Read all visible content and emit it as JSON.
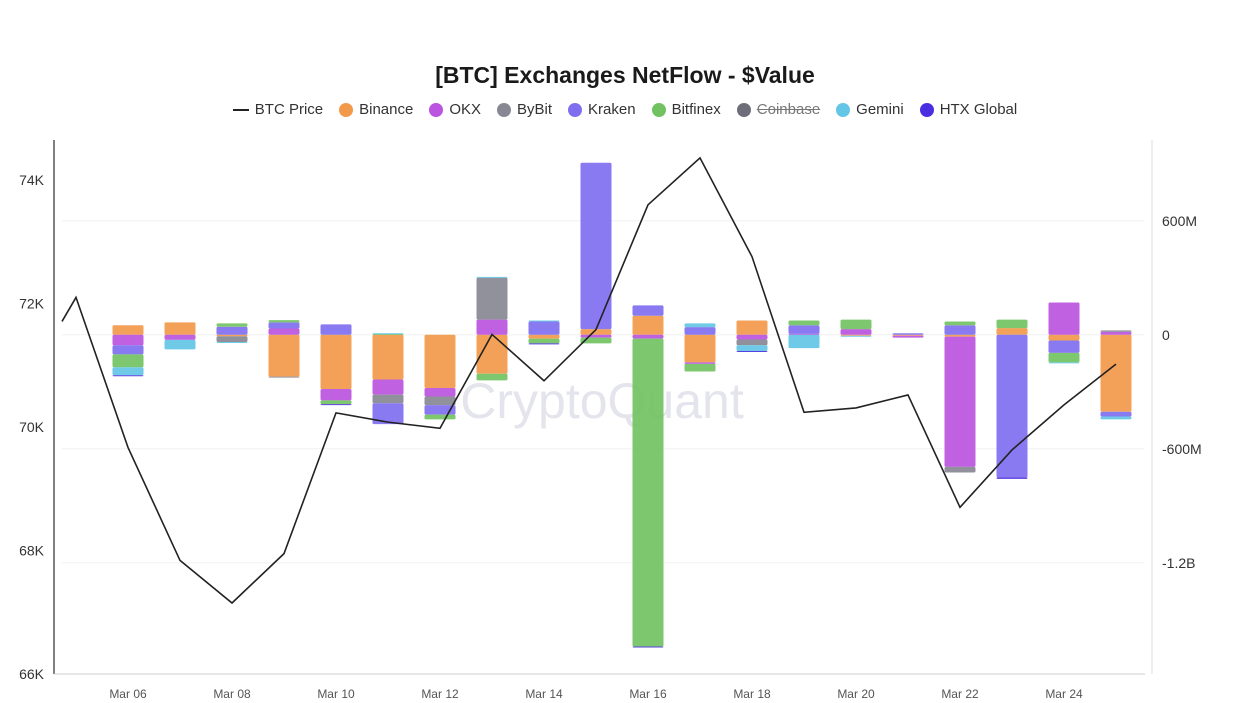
{
  "chart_data": {
    "type": "bar",
    "title": "[BTC] Exchanges NetFlow - $Value",
    "watermark": "CryptoQuant",
    "x_tick_labels": [
      "Mar 06",
      "Mar 08",
      "Mar 10",
      "Mar 12",
      "Mar 14",
      "Mar 16",
      "Mar 18",
      "Mar 20",
      "Mar 22",
      "Mar 24"
    ],
    "x_tick_dates": [
      "2024-03-06",
      "2024-03-08",
      "2024-03-10",
      "2024-03-12",
      "2024-03-14",
      "2024-03-16",
      "2024-03-18",
      "2024-03-20",
      "2024-03-22",
      "2024-03-24"
    ],
    "left_axis": {
      "ticks": [
        66000,
        68000,
        70000,
        72000,
        74000
      ],
      "tick_labels": [
        "66K",
        "68K",
        "70K",
        "72K",
        "74K"
      ],
      "ylim": [
        66000,
        74650
      ]
    },
    "right_axis": {
      "ticks": [
        -1200,
        -600,
        0,
        600
      ],
      "tick_labels": [
        "-1.2B",
        "-600M",
        "0",
        "600M"
      ],
      "unit": "USD millions",
      "ylim": [
        -1785,
        1025
      ]
    },
    "grid": true,
    "legend_placement": "top-center",
    "legend": [
      {
        "name": "BTC Price",
        "color": "#222222",
        "kind": "line",
        "hidden": false
      },
      {
        "name": "Binance",
        "color": "#f2994a",
        "kind": "bar",
        "hidden": false
      },
      {
        "name": "OKX",
        "color": "#bb54e0",
        "kind": "bar",
        "hidden": false
      },
      {
        "name": "ByBit",
        "color": "#888894",
        "kind": "bar",
        "hidden": false
      },
      {
        "name": "Kraken",
        "color": "#7f6ff0",
        "kind": "bar",
        "hidden": false
      },
      {
        "name": "Bitfinex",
        "color": "#72c262",
        "kind": "bar",
        "hidden": false
      },
      {
        "name": "Coinbase",
        "color": "#6e6e7a",
        "kind": "bar",
        "hidden": true
      },
      {
        "name": "Gemini",
        "color": "#63c6e6",
        "kind": "bar",
        "hidden": false
      },
      {
        "name": "HTX Global",
        "color": "#4a2fe0",
        "kind": "bar",
        "hidden": false
      }
    ],
    "price_line": {
      "name": "BTC Price",
      "dates": [
        "2024-03-05",
        "2024-03-06",
        "2024-03-07",
        "2024-03-08",
        "2024-03-09",
        "2024-03-10",
        "2024-03-11",
        "2024-03-12",
        "2024-03-13",
        "2024-03-14",
        "2024-03-15",
        "2024-03-16",
        "2024-03-17",
        "2024-03-18",
        "2024-03-19",
        "2024-03-20",
        "2024-03-21",
        "2024-03-22",
        "2024-03-23",
        "2024-03-24",
        "2024-03-25"
      ],
      "values": [
        72100,
        69670,
        67840,
        67150,
        67950,
        70230,
        70080,
        69980,
        71500,
        70750,
        71580,
        73600,
        74360,
        72760,
        70240,
        70310,
        70520,
        68700,
        69630,
        70360,
        71020
      ]
    },
    "bar_dates": [
      "2024-03-06",
      "2024-03-07",
      "2024-03-08",
      "2024-03-09",
      "2024-03-10",
      "2024-03-11",
      "2024-03-12",
      "2024-03-13",
      "2024-03-14",
      "2024-03-15",
      "2024-03-16",
      "2024-03-17",
      "2024-03-18",
      "2024-03-19",
      "2024-03-20",
      "2024-03-21",
      "2024-03-22",
      "2024-03-23",
      "2024-03-24",
      "2024-03-25"
    ],
    "series": [
      {
        "name": "Binance",
        "values": [
          50,
          65,
          -8,
          -220,
          -285,
          -235,
          -280,
          -205,
          -20,
          30,
          100,
          -145,
          75,
          0,
          -5,
          -5,
          -10,
          35,
          -30,
          -405
        ]
      },
      {
        "name": "OKX",
        "values": [
          -55,
          -27,
          0,
          33,
          -60,
          -80,
          -45,
          80,
          0,
          -15,
          -20,
          -8,
          -25,
          5,
          30,
          -10,
          -685,
          0,
          170,
          15
        ]
      },
      {
        "name": "ByBit",
        "values": [
          0,
          0,
          -30,
          -5,
          0,
          -45,
          -45,
          220,
          0,
          0,
          0,
          0,
          -30,
          0,
          0,
          0,
          -30,
          0,
          0,
          8
        ]
      },
      {
        "name": "Kraken",
        "values": [
          -48,
          0,
          42,
          32,
          55,
          -110,
          -50,
          0,
          70,
          875,
          55,
          40,
          0,
          45,
          0,
          8,
          50,
          -750,
          -65,
          -25
        ]
      },
      {
        "name": "Bitfinex",
        "values": [
          -68,
          0,
          18,
          12,
          -20,
          5,
          -25,
          -35,
          -25,
          -30,
          -1620,
          -40,
          0,
          25,
          50,
          0,
          20,
          45,
          -50,
          0
        ]
      },
      {
        "name": "Coinbase",
        "values": []
      },
      {
        "name": "Gemini",
        "values": [
          -42,
          -50,
          -5,
          0,
          0,
          3,
          0,
          5,
          5,
          0,
          0,
          20,
          -30,
          -70,
          -5,
          0,
          0,
          0,
          -5,
          -15
        ]
      },
      {
        "name": "HTX Global",
        "values": [
          -5,
          0,
          0,
          0,
          -5,
          0,
          0,
          0,
          -5,
          0,
          -5,
          0,
          -5,
          0,
          0,
          0,
          0,
          -8,
          0,
          0
        ]
      }
    ]
  }
}
